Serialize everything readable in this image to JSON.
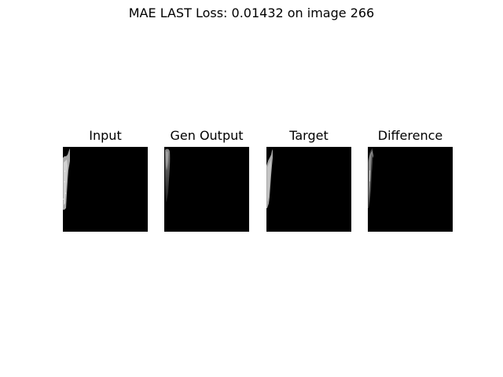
{
  "figure": {
    "title": "MAE LAST Loss: 0.01432 on image 266"
  },
  "panels": [
    {
      "title": "Input"
    },
    {
      "title": "Gen Output"
    },
    {
      "title": "Target"
    },
    {
      "title": "Difference"
    }
  ],
  "colors": {
    "background": "#ffffff",
    "image_background": "#000000",
    "stroke_light": "#b4b4b4",
    "stroke_mid": "#7a7a7a",
    "stroke_dark": "#3c3c3c"
  }
}
